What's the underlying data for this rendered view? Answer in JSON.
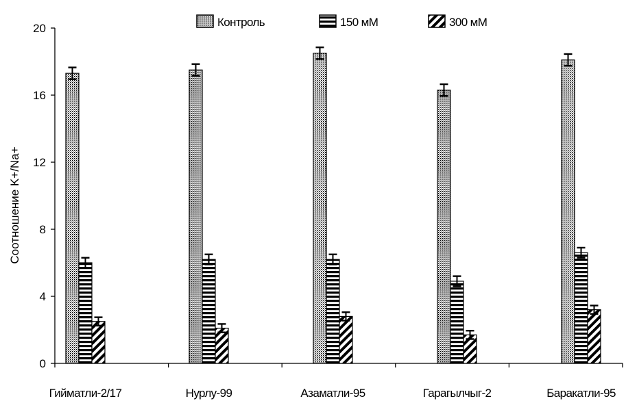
{
  "chart_data": {
    "type": "bar",
    "title": "",
    "xlabel": "",
    "ylabel": "Соотношение K+/Na+",
    "ylim": [
      0,
      20
    ],
    "yticks": [
      0,
      4,
      8,
      12,
      16,
      20
    ],
    "ytick_labels": [
      "0",
      "4",
      "8",
      "12",
      "16",
      "20"
    ],
    "grid": false,
    "legend_position": "top",
    "categories": [
      "Гийматли-2/17",
      "Нурлу-99",
      "Азаматли-95",
      "Гарагылчыг-2",
      "Баракатли-95"
    ],
    "series": [
      {
        "name": "Контроль",
        "pattern": "dots",
        "values": [
          17.3,
          17.5,
          18.5,
          16.3,
          18.1
        ],
        "errors": [
          0.35,
          0.35,
          0.35,
          0.35,
          0.35
        ]
      },
      {
        "name": "150 мМ",
        "pattern": "horizontal-stripes",
        "values": [
          6.0,
          6.2,
          6.2,
          4.9,
          6.6
        ],
        "errors": [
          0.3,
          0.3,
          0.3,
          0.3,
          0.3
        ]
      },
      {
        "name": "300 мМ",
        "pattern": "diagonal-stripes",
        "values": [
          2.5,
          2.1,
          2.8,
          1.7,
          3.2
        ],
        "errors": [
          0.25,
          0.25,
          0.25,
          0.25,
          0.25
        ]
      }
    ]
  }
}
